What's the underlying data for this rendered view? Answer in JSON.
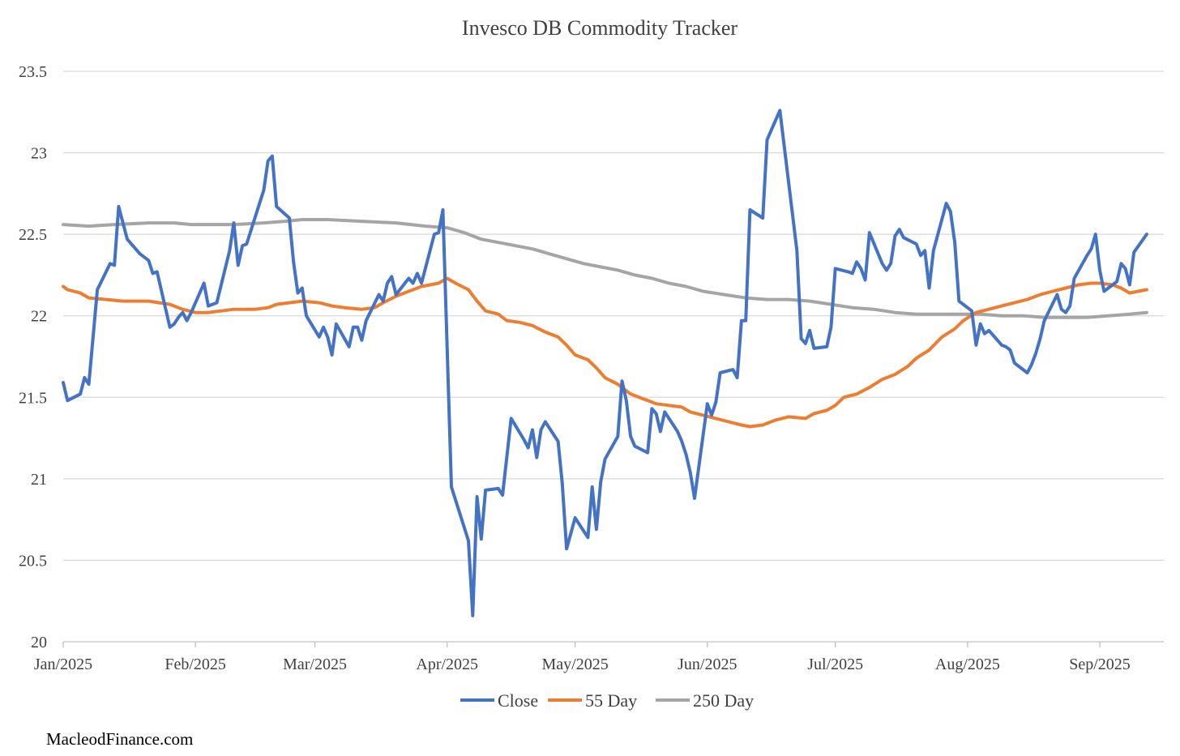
{
  "footer": "MacleodFinance.com",
  "chart_data": {
    "type": "line",
    "title": "Invesco DB Commodity Tracker",
    "xlabel": "",
    "ylabel": "",
    "ylim": [
      20,
      23.5
    ],
    "y_ticks": [
      "20",
      "20.5",
      "21",
      "21.5",
      "22",
      "22.5",
      "23",
      "23.5"
    ],
    "x_ticks": [
      "Jan/2025",
      "Feb/2025",
      "Mar/2025",
      "Apr/2025",
      "May/2025",
      "Jun/2025",
      "Jul/2025",
      "Aug/2025",
      "Sep/2025"
    ],
    "x_unit": "days since 2025-01-01",
    "x_tick_days": [
      0,
      31,
      59,
      90,
      120,
      151,
      181,
      212,
      243
    ],
    "x_range": [
      0,
      258
    ],
    "legend": [
      "Close",
      "55 Day",
      "250 Day"
    ],
    "legend_position": "bottom",
    "grid": "horizontal",
    "colors": {
      "Close": "#4472C4",
      "55 Day": "#ED7D31",
      "250 Day": "#A5A5A5"
    },
    "series": [
      {
        "name": "Close",
        "points": [
          [
            0,
            21.59
          ],
          [
            1,
            21.48
          ],
          [
            4,
            21.52
          ],
          [
            5,
            21.62
          ],
          [
            6,
            21.58
          ],
          [
            8,
            22.16
          ],
          [
            11,
            22.32
          ],
          [
            12,
            22.31
          ],
          [
            13,
            22.67
          ],
          [
            15,
            22.47
          ],
          [
            18,
            22.38
          ],
          [
            20,
            22.34
          ],
          [
            21,
            22.26
          ],
          [
            22,
            22.27
          ],
          [
            25,
            21.93
          ],
          [
            26,
            21.95
          ],
          [
            27,
            21.99
          ],
          [
            28,
            22.02
          ],
          [
            29,
            21.97
          ],
          [
            30,
            22.02
          ],
          [
            33,
            22.2
          ],
          [
            34,
            22.06
          ],
          [
            36,
            22.08
          ],
          [
            39,
            22.4
          ],
          [
            40,
            22.57
          ],
          [
            41,
            22.31
          ],
          [
            42,
            22.43
          ],
          [
            43,
            22.44
          ],
          [
            47,
            22.77
          ],
          [
            48,
            22.95
          ],
          [
            49,
            22.98
          ],
          [
            50,
            22.67
          ],
          [
            53,
            22.6
          ],
          [
            54,
            22.33
          ],
          [
            55,
            22.14
          ],
          [
            56,
            22.17
          ],
          [
            57,
            22.0
          ],
          [
            60,
            21.87
          ],
          [
            61,
            21.93
          ],
          [
            62,
            21.87
          ],
          [
            63,
            21.76
          ],
          [
            64,
            21.95
          ],
          [
            67,
            21.81
          ],
          [
            68,
            21.93
          ],
          [
            69,
            21.93
          ],
          [
            70,
            21.85
          ],
          [
            71,
            21.97
          ],
          [
            74,
            22.13
          ],
          [
            75,
            22.09
          ],
          [
            76,
            22.2
          ],
          [
            77,
            22.24
          ],
          [
            78,
            22.13
          ],
          [
            81,
            22.23
          ],
          [
            82,
            22.2
          ],
          [
            83,
            22.26
          ],
          [
            84,
            22.2
          ],
          [
            87,
            22.5
          ],
          [
            88,
            22.51
          ],
          [
            89,
            22.65
          ],
          [
            91,
            20.95
          ],
          [
            95,
            20.62
          ],
          [
            96,
            20.16
          ],
          [
            97,
            20.89
          ],
          [
            98,
            20.63
          ],
          [
            99,
            20.93
          ],
          [
            102,
            20.94
          ],
          [
            103,
            20.9
          ],
          [
            105,
            21.37
          ],
          [
            108,
            21.24
          ],
          [
            109,
            21.19
          ],
          [
            110,
            21.3
          ],
          [
            111,
            21.13
          ],
          [
            112,
            21.3
          ],
          [
            113,
            21.35
          ],
          [
            116,
            21.23
          ],
          [
            117,
            20.97
          ],
          [
            118,
            20.57
          ],
          [
            120,
            20.76
          ],
          [
            123,
            20.64
          ],
          [
            124,
            20.95
          ],
          [
            125,
            20.69
          ],
          [
            126,
            20.98
          ],
          [
            127,
            21.12
          ],
          [
            130,
            21.26
          ],
          [
            131,
            21.6
          ],
          [
            132,
            21.48
          ],
          [
            133,
            21.26
          ],
          [
            134,
            21.2
          ],
          [
            137,
            21.16
          ],
          [
            138,
            21.43
          ],
          [
            139,
            21.4
          ],
          [
            140,
            21.29
          ],
          [
            141,
            21.41
          ],
          [
            144,
            21.29
          ],
          [
            145,
            21.23
          ],
          [
            146,
            21.15
          ],
          [
            147,
            21.04
          ],
          [
            148,
            20.88
          ],
          [
            151,
            21.46
          ],
          [
            152,
            21.39
          ],
          [
            153,
            21.47
          ],
          [
            154,
            21.65
          ],
          [
            157,
            21.67
          ],
          [
            158,
            21.62
          ],
          [
            159,
            21.97
          ],
          [
            160,
            21.97
          ],
          [
            161,
            22.65
          ],
          [
            164,
            22.6
          ],
          [
            165,
            23.08
          ],
          [
            168,
            23.26
          ],
          [
            172,
            22.4
          ],
          [
            173,
            21.86
          ],
          [
            174,
            21.83
          ],
          [
            175,
            21.91
          ],
          [
            176,
            21.8
          ],
          [
            179,
            21.81
          ],
          [
            180,
            21.93
          ],
          [
            181,
            22.29
          ],
          [
            184,
            22.27
          ],
          [
            185,
            22.26
          ],
          [
            186,
            22.33
          ],
          [
            187,
            22.29
          ],
          [
            188,
            22.22
          ],
          [
            189,
            22.51
          ],
          [
            192,
            22.32
          ],
          [
            193,
            22.28
          ],
          [
            194,
            22.32
          ],
          [
            195,
            22.49
          ],
          [
            196,
            22.53
          ],
          [
            197,
            22.48
          ],
          [
            200,
            22.44
          ],
          [
            201,
            22.37
          ],
          [
            202,
            22.4
          ],
          [
            203,
            22.17
          ],
          [
            204,
            22.4
          ],
          [
            207,
            22.69
          ],
          [
            208,
            22.64
          ],
          [
            209,
            22.45
          ],
          [
            210,
            22.09
          ],
          [
            213,
            22.03
          ],
          [
            214,
            21.82
          ],
          [
            215,
            21.95
          ],
          [
            216,
            21.89
          ],
          [
            217,
            21.91
          ],
          [
            220,
            21.82
          ],
          [
            221,
            21.81
          ],
          [
            222,
            21.79
          ],
          [
            223,
            21.71
          ],
          [
            226,
            21.65
          ],
          [
            227,
            21.7
          ],
          [
            228,
            21.77
          ],
          [
            229,
            21.86
          ],
          [
            230,
            21.97
          ],
          [
            233,
            22.13
          ],
          [
            234,
            22.04
          ],
          [
            235,
            22.02
          ],
          [
            236,
            22.06
          ],
          [
            237,
            22.23
          ],
          [
            240,
            22.37
          ],
          [
            241,
            22.41
          ],
          [
            242,
            22.5
          ],
          [
            243,
            22.28
          ],
          [
            244,
            22.15
          ],
          [
            247,
            22.21
          ],
          [
            248,
            22.32
          ],
          [
            249,
            22.29
          ],
          [
            250,
            22.19
          ],
          [
            251,
            22.39
          ],
          [
            254,
            22.5
          ]
        ]
      },
      {
        "name": "55 Day",
        "points": [
          [
            0,
            22.18
          ],
          [
            1,
            22.16
          ],
          [
            4,
            22.14
          ],
          [
            6,
            22.11
          ],
          [
            10,
            22.1
          ],
          [
            14,
            22.09
          ],
          [
            20,
            22.09
          ],
          [
            25,
            22.07
          ],
          [
            28,
            22.04
          ],
          [
            31,
            22.02
          ],
          [
            34,
            22.02
          ],
          [
            37,
            22.03
          ],
          [
            40,
            22.04
          ],
          [
            45,
            22.04
          ],
          [
            48,
            22.05
          ],
          [
            50,
            22.07
          ],
          [
            53,
            22.08
          ],
          [
            56,
            22.09
          ],
          [
            60,
            22.08
          ],
          [
            63,
            22.06
          ],
          [
            66,
            22.05
          ],
          [
            70,
            22.04
          ],
          [
            73,
            22.05
          ],
          [
            75,
            22.08
          ],
          [
            78,
            22.12
          ],
          [
            81,
            22.15
          ],
          [
            84,
            22.18
          ],
          [
            88,
            22.2
          ],
          [
            90,
            22.23
          ],
          [
            92,
            22.2
          ],
          [
            95,
            22.16
          ],
          [
            97,
            22.09
          ],
          [
            99,
            22.03
          ],
          [
            102,
            22.01
          ],
          [
            104,
            21.97
          ],
          [
            107,
            21.96
          ],
          [
            110,
            21.94
          ],
          [
            113,
            21.9
          ],
          [
            116,
            21.87
          ],
          [
            118,
            21.82
          ],
          [
            120,
            21.76
          ],
          [
            123,
            21.73
          ],
          [
            125,
            21.68
          ],
          [
            127,
            21.62
          ],
          [
            130,
            21.58
          ],
          [
            133,
            21.52
          ],
          [
            136,
            21.49
          ],
          [
            139,
            21.46
          ],
          [
            142,
            21.45
          ],
          [
            145,
            21.44
          ],
          [
            147,
            21.41
          ],
          [
            150,
            21.39
          ],
          [
            153,
            21.37
          ],
          [
            156,
            21.35
          ],
          [
            159,
            21.33
          ],
          [
            161,
            21.32
          ],
          [
            164,
            21.33
          ],
          [
            167,
            21.36
          ],
          [
            170,
            21.38
          ],
          [
            174,
            21.37
          ],
          [
            176,
            21.4
          ],
          [
            179,
            21.42
          ],
          [
            181,
            21.45
          ],
          [
            183,
            21.5
          ],
          [
            186,
            21.52
          ],
          [
            189,
            21.56
          ],
          [
            192,
            21.61
          ],
          [
            195,
            21.64
          ],
          [
            198,
            21.69
          ],
          [
            200,
            21.74
          ],
          [
            203,
            21.79
          ],
          [
            206,
            21.87
          ],
          [
            209,
            21.92
          ],
          [
            211,
            21.97
          ],
          [
            214,
            22.02
          ],
          [
            217,
            22.04
          ],
          [
            220,
            22.06
          ],
          [
            223,
            22.08
          ],
          [
            226,
            22.1
          ],
          [
            229,
            22.13
          ],
          [
            232,
            22.15
          ],
          [
            235,
            22.17
          ],
          [
            238,
            22.19
          ],
          [
            241,
            22.2
          ],
          [
            243,
            22.2
          ],
          [
            246,
            22.19
          ],
          [
            248,
            22.17
          ],
          [
            250,
            22.14
          ],
          [
            252,
            22.15
          ],
          [
            254,
            22.16
          ]
        ]
      },
      {
        "name": "250 Day",
        "points": [
          [
            0,
            22.56
          ],
          [
            6,
            22.55
          ],
          [
            12,
            22.56
          ],
          [
            20,
            22.57
          ],
          [
            26,
            22.57
          ],
          [
            30,
            22.56
          ],
          [
            40,
            22.56
          ],
          [
            47,
            22.57
          ],
          [
            52,
            22.58
          ],
          [
            56,
            22.59
          ],
          [
            62,
            22.59
          ],
          [
            70,
            22.58
          ],
          [
            78,
            22.57
          ],
          [
            85,
            22.55
          ],
          [
            90,
            22.54
          ],
          [
            94,
            22.51
          ],
          [
            98,
            22.47
          ],
          [
            102,
            22.45
          ],
          [
            106,
            22.43
          ],
          [
            110,
            22.41
          ],
          [
            114,
            22.38
          ],
          [
            118,
            22.35
          ],
          [
            122,
            22.32
          ],
          [
            126,
            22.3
          ],
          [
            130,
            22.28
          ],
          [
            134,
            22.25
          ],
          [
            138,
            22.23
          ],
          [
            142,
            22.2
          ],
          [
            146,
            22.18
          ],
          [
            150,
            22.15
          ],
          [
            155,
            22.13
          ],
          [
            160,
            22.11
          ],
          [
            165,
            22.1
          ],
          [
            170,
            22.1
          ],
          [
            175,
            22.09
          ],
          [
            180,
            22.07
          ],
          [
            185,
            22.05
          ],
          [
            190,
            22.04
          ],
          [
            195,
            22.02
          ],
          [
            200,
            22.01
          ],
          [
            210,
            22.01
          ],
          [
            215,
            22.01
          ],
          [
            220,
            22.0
          ],
          [
            225,
            22.0
          ],
          [
            230,
            21.99
          ],
          [
            235,
            21.99
          ],
          [
            240,
            21.99
          ],
          [
            245,
            22.0
          ],
          [
            250,
            22.01
          ],
          [
            254,
            22.02
          ]
        ]
      }
    ]
  }
}
